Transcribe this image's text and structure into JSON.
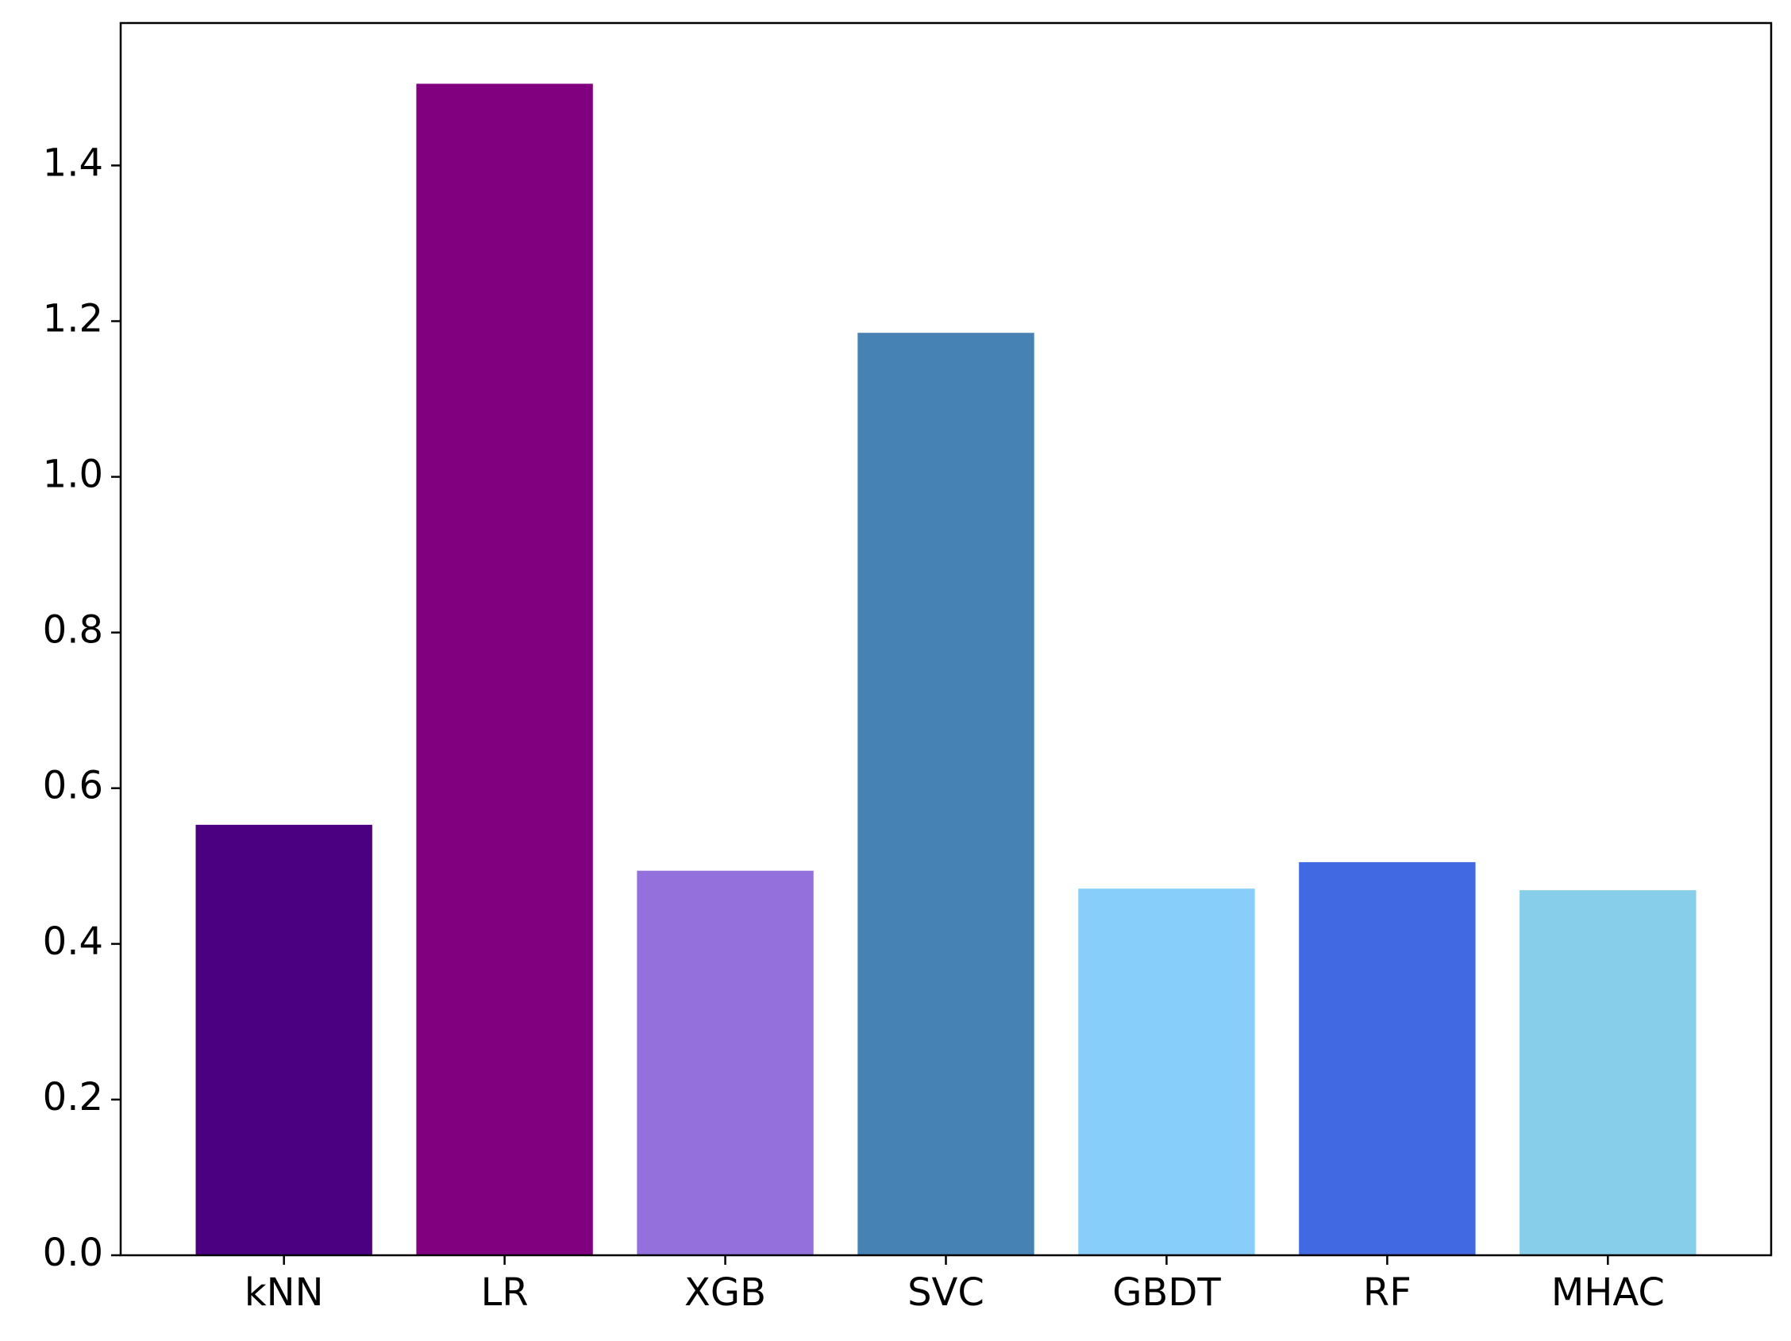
{
  "chart_data": {
    "type": "bar",
    "categories": [
      "kNN",
      "LR",
      "XGB",
      "SVC",
      "GBDT",
      "RF",
      "MHAC"
    ],
    "values": [
      0.553,
      1.505,
      0.494,
      1.185,
      0.471,
      0.505,
      0.469
    ],
    "colors": [
      "#4b0082",
      "#800080",
      "#9370db",
      "#4682b4",
      "#87cefa",
      "#4169e1",
      "#87ceeb"
    ],
    "ylim": [
      0,
      1.583
    ],
    "yticks": [
      {
        "value": 0,
        "label": "0.0"
      },
      0.2,
      0.4,
      0.6,
      0.8,
      {
        "value": 1,
        "label": "1.0"
      },
      1.2,
      1.4
    ],
    "grid": false
  }
}
